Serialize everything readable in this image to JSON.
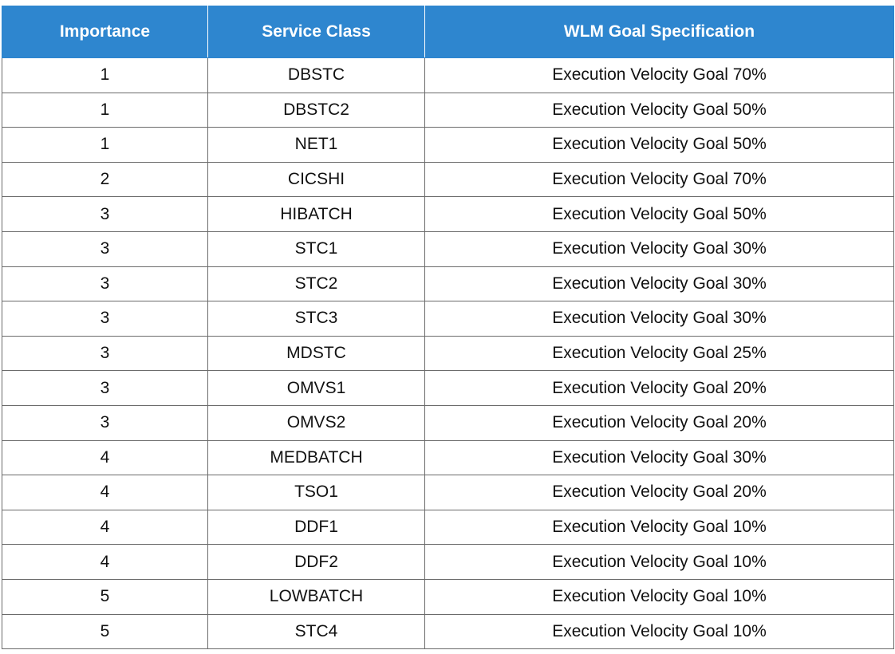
{
  "header": {
    "importance": "Importance",
    "service_class": "Service Class",
    "goal": "WLM Goal Specification"
  },
  "rows": [
    {
      "importance": "1",
      "service_class": "DBSTC",
      "goal": "Execution Velocity Goal 70%"
    },
    {
      "importance": "1",
      "service_class": "DBSTC2",
      "goal": "Execution Velocity Goal 50%"
    },
    {
      "importance": "1",
      "service_class": "NET1",
      "goal": "Execution Velocity Goal 50%"
    },
    {
      "importance": "2",
      "service_class": "CICSHI",
      "goal": "Execution Velocity Goal 70%"
    },
    {
      "importance": "3",
      "service_class": "HIBATCH",
      "goal": "Execution Velocity Goal 50%"
    },
    {
      "importance": "3",
      "service_class": "STC1",
      "goal": "Execution Velocity Goal 30%"
    },
    {
      "importance": "3",
      "service_class": "STC2",
      "goal": "Execution Velocity Goal 30%"
    },
    {
      "importance": "3",
      "service_class": "STC3",
      "goal": "Execution Velocity Goal 30%"
    },
    {
      "importance": "3",
      "service_class": "MDSTC",
      "goal": "Execution Velocity Goal 25%"
    },
    {
      "importance": "3",
      "service_class": "OMVS1",
      "goal": "Execution Velocity Goal 20%"
    },
    {
      "importance": "3",
      "service_class": "OMVS2",
      "goal": "Execution Velocity Goal 20%"
    },
    {
      "importance": "4",
      "service_class": "MEDBATCH",
      "goal": "Execution Velocity Goal 30%"
    },
    {
      "importance": "4",
      "service_class": "TSO1",
      "goal": "Execution Velocity Goal 20%"
    },
    {
      "importance": "4",
      "service_class": "DDF1",
      "goal": "Execution Velocity Goal 10%"
    },
    {
      "importance": "4",
      "service_class": "DDF2",
      "goal": "Execution Velocity Goal 10%"
    },
    {
      "importance": "5",
      "service_class": "LOWBATCH",
      "goal": "Execution Velocity Goal 10%"
    },
    {
      "importance": "5",
      "service_class": "STC4",
      "goal": "Execution Velocity Goal 10%"
    }
  ],
  "colors": {
    "header_bg": "#2e86cf",
    "header_text": "#ffffff",
    "border": "#6b6b6b"
  }
}
